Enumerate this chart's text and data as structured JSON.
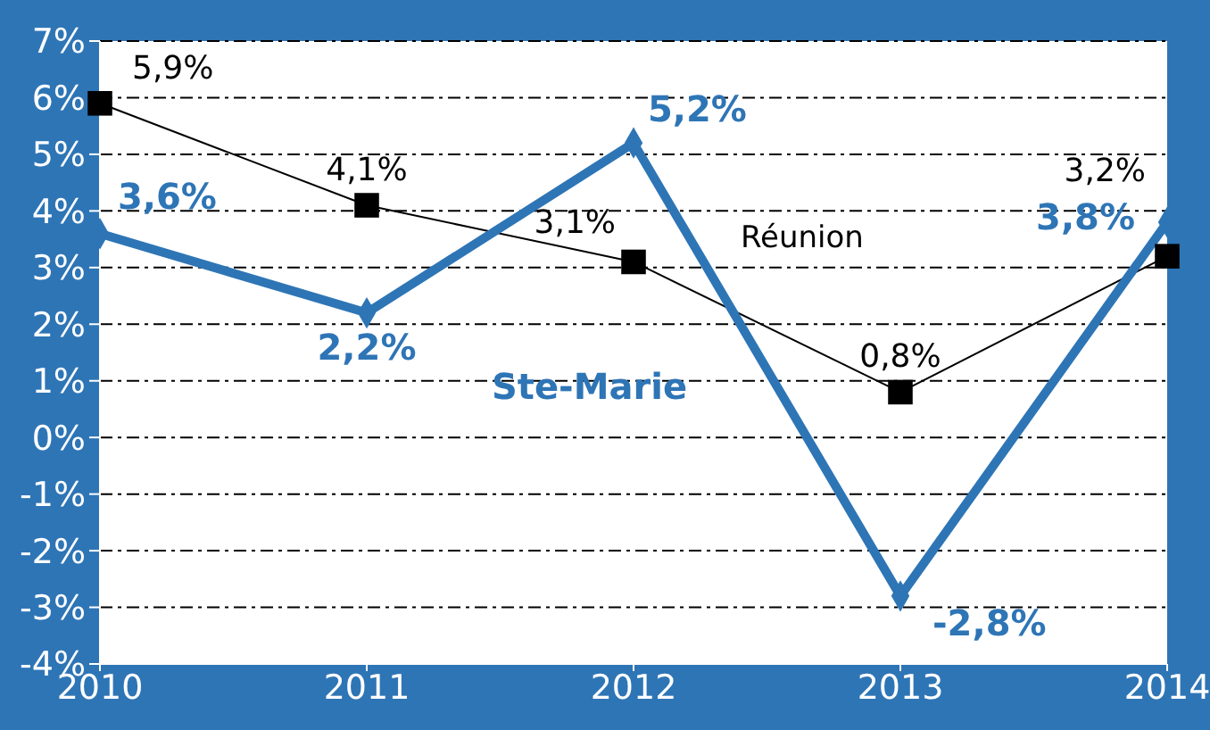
{
  "chart_data": {
    "type": "line",
    "x": [
      2010,
      2011,
      2012,
      2013,
      2014
    ],
    "xlim": [
      2010,
      2014
    ],
    "xticks": [
      2010,
      2011,
      2012,
      2013,
      2014
    ],
    "ylim": [
      -4,
      7
    ],
    "yticks": [
      {
        "value": -4,
        "label": "-4%"
      },
      {
        "value": -3,
        "label": "-3%"
      },
      {
        "value": -2,
        "label": "-2%"
      },
      {
        "value": -1,
        "label": "-1%"
      },
      {
        "value": 0,
        "label": "0%"
      },
      {
        "value": 1,
        "label": "1%"
      },
      {
        "value": 2,
        "label": "2%"
      },
      {
        "value": 3,
        "label": "3%"
      },
      {
        "value": 4,
        "label": "4%"
      },
      {
        "value": 5,
        "label": "5%"
      },
      {
        "value": 6,
        "label": "6%"
      },
      {
        "value": 7,
        "label": "7%"
      }
    ],
    "grid": "y",
    "legend": false,
    "series": [
      {
        "name": "Réunion",
        "color": "#000000",
        "marker": "square",
        "values": [
          5.9,
          4.1,
          3.1,
          0.8,
          3.2
        ],
        "value_labels": [
          "5,9%",
          "4,1%",
          "3,1%",
          "0,8%",
          "3,2%"
        ]
      },
      {
        "name": "Ste-Marie",
        "color": "#2e75b6",
        "marker": "diamond",
        "values": [
          3.6,
          2.2,
          5.2,
          -2.8,
          3.8
        ],
        "value_labels": [
          "3,6%",
          "2,2%",
          "5,2%",
          "-2,8%",
          "3,8%"
        ]
      }
    ]
  }
}
